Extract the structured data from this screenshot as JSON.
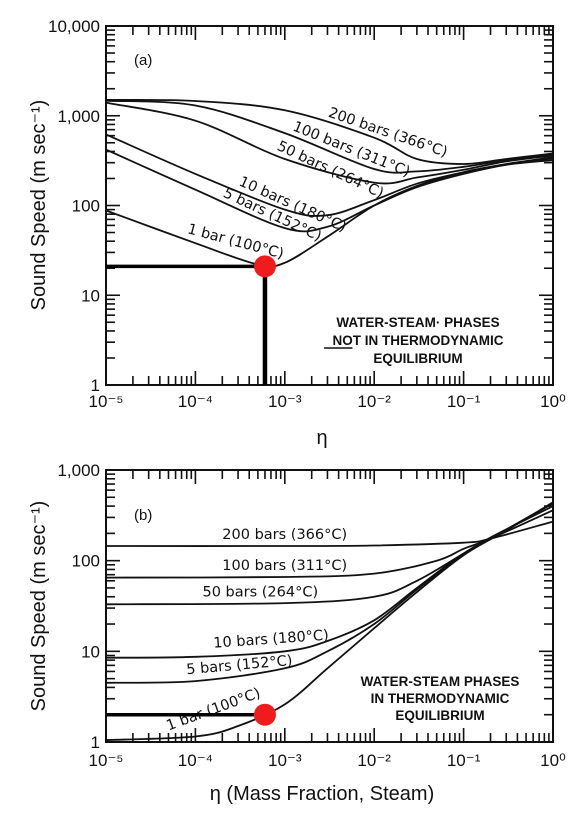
{
  "chart_data": [
    {
      "panel": "(a)",
      "type": "line",
      "x_scale": "log",
      "y_scale": "log",
      "xlim": [
        1e-05,
        1
      ],
      "ylim": [
        1,
        10000
      ],
      "xlabel": "η",
      "ylabel": "Sound Speed (m sec⁻¹)",
      "x_tick_labels": [
        "10⁻⁵",
        "10⁻⁴",
        "10⁻³",
        "10⁻²",
        "10⁻¹",
        "10⁰"
      ],
      "y_tick_labels": [
        "1",
        "10",
        "100",
        "1,000",
        "10,000"
      ],
      "note": [
        "WATER-STEAM· PHASES",
        "NOT IN THERMODYNAMIC",
        "EQUILIBRIUM"
      ],
      "note_underlined_word": "NOT",
      "series": [
        {
          "name": "200 bars (366°C)",
          "x": [
            1e-05,
            0.0001,
            0.001,
            0.01,
            0.03,
            0.1,
            0.3,
            1
          ],
          "y": [
            1500,
            1460,
            1150,
            570,
            330,
            290,
            330,
            380
          ]
        },
        {
          "name": "100 bars (311°C)",
          "x": [
            1e-05,
            0.0001,
            0.001,
            0.01,
            0.03,
            0.1,
            0.3,
            1
          ],
          "y": [
            1470,
            1300,
            640,
            255,
            240,
            270,
            320,
            370
          ]
        },
        {
          "name": "50 bars (264°C)",
          "x": [
            1e-05,
            0.0001,
            0.001,
            0.01,
            0.03,
            0.1,
            0.3,
            1
          ],
          "y": [
            1400,
            880,
            330,
            180,
            205,
            250,
            310,
            360
          ]
        },
        {
          "name": "10 bars (180°C)",
          "x": [
            1e-05,
            0.0001,
            0.001,
            0.003,
            0.01,
            0.03,
            0.1,
            0.3,
            1
          ],
          "y": [
            620,
            225,
            90,
            78,
            115,
            175,
            235,
            290,
            345
          ]
        },
        {
          "name": "5 bars (152°C)",
          "x": [
            1e-05,
            0.0001,
            0.001,
            0.003,
            0.01,
            0.03,
            0.1,
            0.3,
            1
          ],
          "y": [
            420,
            150,
            56,
            58,
            100,
            160,
            225,
            285,
            335
          ]
        },
        {
          "name": "1 bar (100°C)",
          "x": [
            1e-05,
            0.0001,
            0.0005,
            0.001,
            0.003,
            0.01,
            0.03,
            0.1,
            0.3,
            1
          ],
          "y": [
            88,
            38,
            22,
            23,
            45,
            100,
            165,
            235,
            285,
            320
          ]
        }
      ],
      "marker": {
        "x": 0.0006,
        "y": 21,
        "color": "#ee1c1c"
      }
    },
    {
      "panel": "(b)",
      "type": "line",
      "x_scale": "log",
      "y_scale": "log",
      "xlim": [
        1e-05,
        1
      ],
      "ylim": [
        1,
        1000
      ],
      "xlabel": "η (Mass Fraction, Steam)",
      "ylabel": "Sound Speed (m sec⁻¹)",
      "x_tick_labels": [
        "10⁻⁵",
        "10⁻⁴",
        "10⁻³",
        "10⁻²",
        "10⁻¹",
        "10⁰"
      ],
      "y_tick_labels": [
        "1",
        "10",
        "100",
        "1,000"
      ],
      "note": [
        "WATER-STEAM PHASES",
        "IN THERMODYNAMIC",
        "EQUILIBRIUM"
      ],
      "series": [
        {
          "name": "200 bars (366°C)",
          "x": [
            1e-05,
            0.001,
            0.01,
            0.1,
            0.2,
            1
          ],
          "y": [
            145,
            145,
            147,
            158,
            175,
            270
          ]
        },
        {
          "name": "100 bars (311°C)",
          "x": [
            1e-05,
            0.001,
            0.01,
            0.05,
            0.1,
            0.2,
            1
          ],
          "y": [
            65,
            66,
            72,
            100,
            135,
            175,
            360
          ]
        },
        {
          "name": "50 bars (264°C)",
          "x": [
            1e-05,
            0.001,
            0.01,
            0.03,
            0.1,
            0.2,
            1
          ],
          "y": [
            33,
            34,
            40,
            60,
            120,
            180,
            400
          ]
        },
        {
          "name": "10 bars (180°C)",
          "x": [
            1e-05,
            0.0001,
            0.001,
            0.003,
            0.01,
            0.03,
            0.1,
            0.3,
            1
          ],
          "y": [
            8.5,
            8.7,
            10,
            13,
            22,
            50,
            120,
            220,
            430
          ]
        },
        {
          "name": "5 bars (152°C)",
          "x": [
            1e-05,
            0.0001,
            0.001,
            0.003,
            0.01,
            0.03,
            0.1,
            0.3,
            1
          ],
          "y": [
            4.5,
            4.7,
            6.5,
            10,
            20,
            48,
            118,
            220,
            430
          ]
        },
        {
          "name": "1 bar (100°C)",
          "x": [
            1e-05,
            0.0001,
            0.0003,
            0.001,
            0.003,
            0.01,
            0.03,
            0.1,
            0.3,
            1
          ],
          "y": [
            1.05,
            1.15,
            1.5,
            2.6,
            6.5,
            18,
            45,
            115,
            215,
            440
          ]
        }
      ],
      "marker": {
        "x": 0.0006,
        "y": 2.0,
        "color": "#ee1c1c"
      }
    }
  ]
}
